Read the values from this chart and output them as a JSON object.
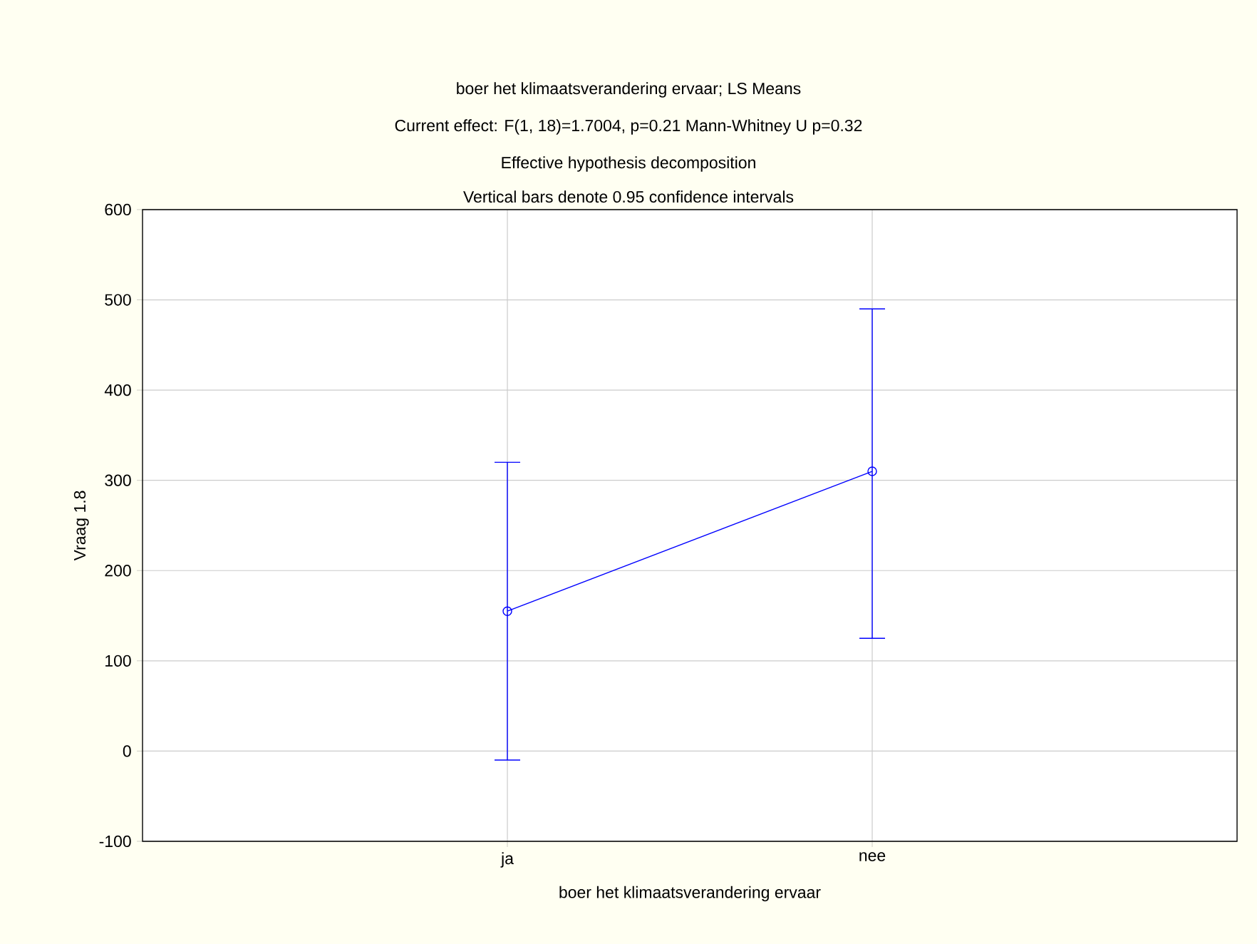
{
  "chart_data": {
    "type": "line",
    "title": "boer het klimaatsverandering ervaar; LS Means",
    "subtitle": "Current effect: F(1, 18)=1.7004, p=0.21 Mann-Whitney U p=0.32",
    "annotations": [
      "Effective hypothesis decomposition",
      "Vertical bars denote 0.95 confidence intervals"
    ],
    "xlabel": "boer het klimaatsverandering ervaar",
    "ylabel": "Vraag 1.8",
    "categories": [
      "ja",
      "nee"
    ],
    "series": [
      {
        "color": "#0000ff",
        "values": [
          155,
          310
        ],
        "errors": [
          [
            -10,
            320
          ],
          [
            125,
            490
          ]
        ]
      }
    ],
    "ylim": [
      -100,
      600
    ],
    "yticks": [
      -100,
      0,
      100,
      200,
      300,
      400,
      500,
      600
    ],
    "grid": true,
    "marker": "circle",
    "line_style": "solid"
  }
}
